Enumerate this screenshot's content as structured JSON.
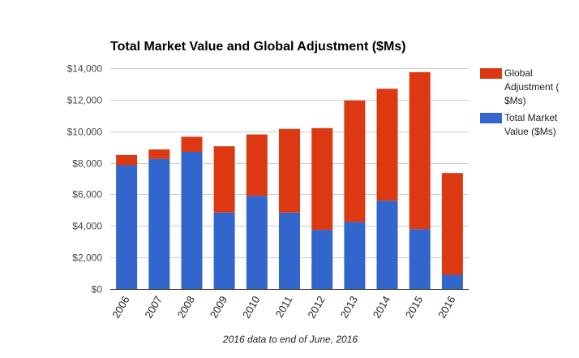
{
  "chart_data": {
    "type": "bar",
    "stacked": true,
    "title": "Total Market Value and Global Adjustment ($Ms)",
    "subtitle": "2016 data to end of June, 2016",
    "categories": [
      "2006",
      "2007",
      "2008",
      "2009",
      "2010",
      "2011",
      "2012",
      "2013",
      "2014",
      "2015",
      "2016"
    ],
    "series": [
      {
        "name": "Total Market Value ($Ms)",
        "color": "#3366cc",
        "values": [
          7850,
          8250,
          8700,
          4850,
          5900,
          4850,
          3750,
          4250,
          5600,
          3800,
          900
        ]
      },
      {
        "name": "Global Adjustment ($Ms)",
        "color": "#dc3912",
        "values": [
          650,
          600,
          950,
          4200,
          3900,
          5300,
          6450,
          7700,
          7100,
          9950,
          6450
        ]
      }
    ],
    "ylim": [
      0,
      14000
    ],
    "yticks": [
      0,
      2000,
      4000,
      6000,
      8000,
      10000,
      12000,
      14000
    ],
    "ytick_labels": [
      "$0",
      "$2,000",
      "$4,000",
      "$6,000",
      "$8,000",
      "$10,000",
      "$12,000",
      "$14,000"
    ],
    "legend": {
      "position": "right",
      "entries": [
        {
          "series": "Global Adjustment ($Ms)",
          "color": "#dc3912",
          "lines": [
            "Global",
            "Adjustment (",
            "$Ms)"
          ]
        },
        {
          "series": "Total Market Value ($Ms)",
          "color": "#3366cc",
          "lines": [
            "Total Market",
            "Value ($Ms)"
          ]
        }
      ]
    },
    "xlabel": "",
    "ylabel": "",
    "grid": true
  }
}
